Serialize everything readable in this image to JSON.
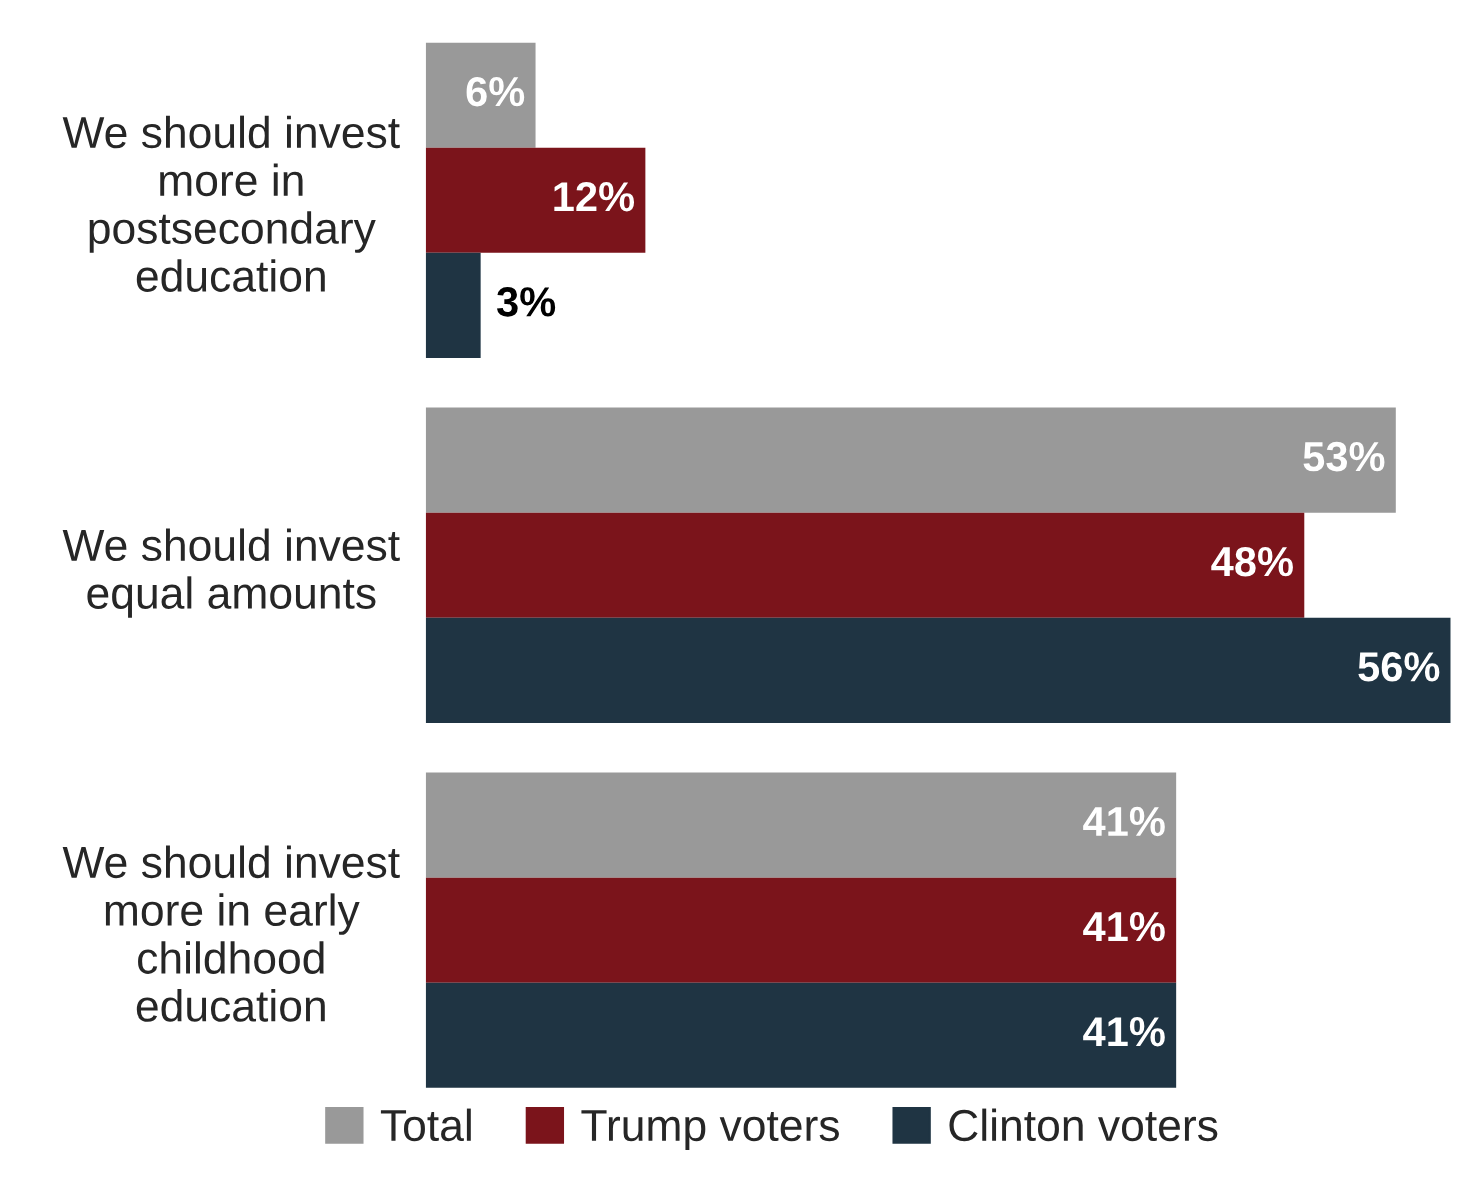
{
  "chart_data": {
    "type": "bar",
    "orientation": "horizontal",
    "categories": [
      "We should invest\nmore in\npostsecondary\neducation",
      "We should invest\nequal amounts",
      "We should invest\nmore in early\nchildhood\neducation"
    ],
    "series": [
      {
        "name": "Total",
        "color": "#999999",
        "values": [
          6,
          53,
          41
        ],
        "value_labels": [
          "6%",
          "53%",
          "41%"
        ]
      },
      {
        "name": "Trump voters",
        "color": "#7b141b",
        "values": [
          12,
          48,
          41
        ],
        "value_labels": [
          "12%",
          "48%",
          "41%"
        ]
      },
      {
        "name": "Clinton voters",
        "color": "#1f3443",
        "values": [
          3,
          56,
          41
        ],
        "value_labels": [
          "3%",
          "56%",
          "41%"
        ]
      }
    ],
    "xlim": [
      0,
      56
    ],
    "tick_labels": "y",
    "grid": false,
    "legend": "bottom"
  }
}
